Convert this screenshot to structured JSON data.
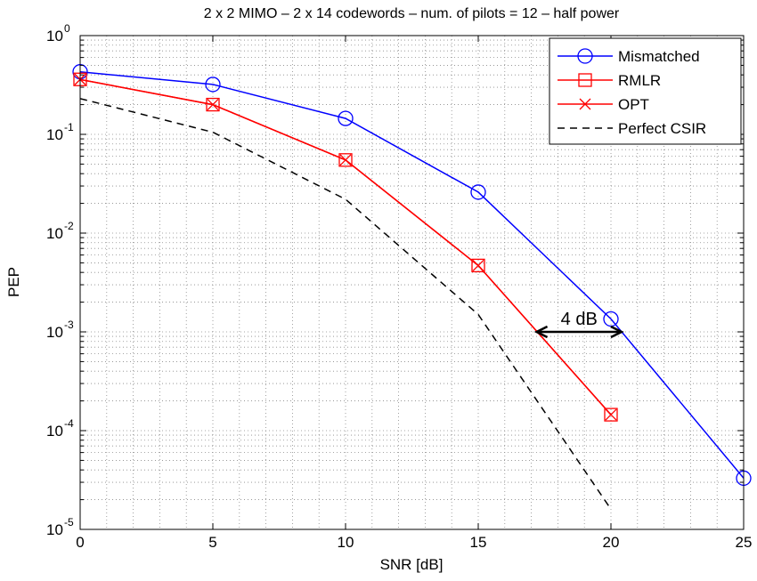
{
  "chart_data": {
    "type": "line",
    "title": "2 x 2 MIMO – 2 x 14 codewords – num. of pilots = 12 – half power",
    "xlabel": "SNR [dB]",
    "ylabel": "PEP",
    "xlim": [
      0,
      25
    ],
    "ylim": [
      1e-05,
      1
    ],
    "yscale": "log",
    "grid": true,
    "legend_position": "top-right",
    "x_ticks": [
      "0",
      "5",
      "10",
      "15",
      "20",
      "25"
    ],
    "y_ticks": [
      {
        "base": "10",
        "exp": "-5"
      },
      {
        "base": "10",
        "exp": "-4"
      },
      {
        "base": "10",
        "exp": "-3"
      },
      {
        "base": "10",
        "exp": "-2"
      },
      {
        "base": "10",
        "exp": "-1"
      },
      {
        "base": "10",
        "exp": "0"
      }
    ],
    "series": [
      {
        "name": "Mismatched",
        "color": "#0000ff",
        "marker": "circle",
        "line": "solid",
        "x": [
          0,
          5,
          10,
          15,
          20,
          25
        ],
        "y": [
          0.43,
          0.32,
          0.145,
          0.026,
          0.00135,
          3.3e-05
        ]
      },
      {
        "name": "RMLR",
        "color": "#ff0000",
        "marker": "square",
        "line": "solid",
        "x": [
          0,
          5,
          10,
          15,
          20
        ],
        "y": [
          0.36,
          0.2,
          0.055,
          0.0047,
          0.000145
        ]
      },
      {
        "name": "OPT",
        "color": "#ff0000",
        "marker": "x",
        "line": "solid",
        "x": [
          0,
          5,
          10,
          15,
          20
        ],
        "y": [
          0.36,
          0.2,
          0.055,
          0.0047,
          0.000145
        ]
      },
      {
        "name": "Perfect CSIR",
        "color": "#000000",
        "marker": "none",
        "line": "dashed",
        "x": [
          0,
          5,
          10,
          15,
          20
        ],
        "y": [
          0.23,
          0.105,
          0.022,
          0.0015,
          1.6e-05
        ]
      }
    ],
    "annotations": [
      {
        "text": "4 dB",
        "type": "double-arrow",
        "x1": 17.2,
        "x2": 20.4,
        "y": 0.001
      }
    ]
  }
}
